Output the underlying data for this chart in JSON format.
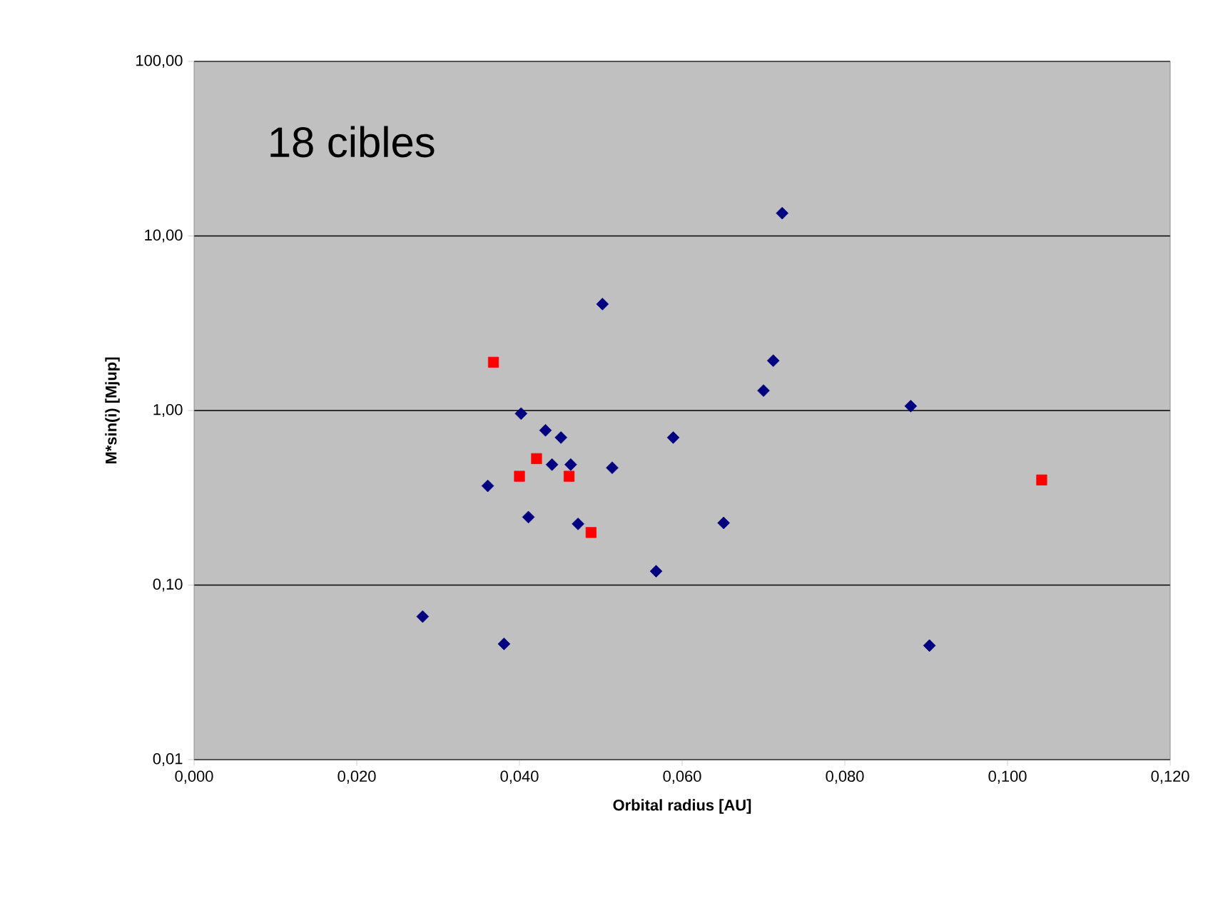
{
  "chart_data": {
    "type": "scatter",
    "title": "18 cibles",
    "xlabel": "Orbital radius [AU]",
    "ylabel": "M*sin(i) [Mjup]",
    "log": "y",
    "grid": "y",
    "xlim": [
      0,
      0.12
    ],
    "ylim": [
      0.01,
      100
    ],
    "xticks": [
      {
        "value": 0,
        "label": "0,000"
      },
      {
        "value": 0.02,
        "label": "0,020"
      },
      {
        "value": 0.04,
        "label": "0,040"
      },
      {
        "value": 0.06,
        "label": "0,060"
      },
      {
        "value": 0.08,
        "label": "0,080"
      },
      {
        "value": 0.1,
        "label": "0,100"
      },
      {
        "value": 0.12,
        "label": "0,120"
      }
    ],
    "yticks": [
      {
        "value": 0.01,
        "label": "0,01"
      },
      {
        "value": 0.1,
        "label": "0,10"
      },
      {
        "value": 1,
        "label": "1,00"
      },
      {
        "value": 10,
        "label": "10,00"
      },
      {
        "value": 100,
        "label": "100,00"
      }
    ],
    "series": [
      {
        "color": "#000080",
        "marker": "diamond",
        "x": [
          0.0281,
          0.0361,
          0.0381,
          0.0402,
          0.0411,
          0.0432,
          0.044,
          0.0451,
          0.0463,
          0.0472,
          0.0502,
          0.0514,
          0.0568,
          0.0589,
          0.0651,
          0.07,
          0.0712,
          0.0723,
          0.0881,
          0.0904
        ],
        "values": [
          0.066,
          0.37,
          0.046,
          0.96,
          0.245,
          0.77,
          0.49,
          0.7,
          0.49,
          0.224,
          4.07,
          0.47,
          0.12,
          0.7,
          0.227,
          1.3,
          1.93,
          13.5,
          1.06,
          0.045
        ]
      },
      {
        "color": "#ff0000",
        "marker": "square",
        "x": [
          0.0368,
          0.04,
          0.0421,
          0.0461,
          0.0488,
          0.1042
        ],
        "values": [
          1.89,
          0.42,
          0.53,
          0.42,
          0.2,
          0.4
        ]
      }
    ]
  }
}
